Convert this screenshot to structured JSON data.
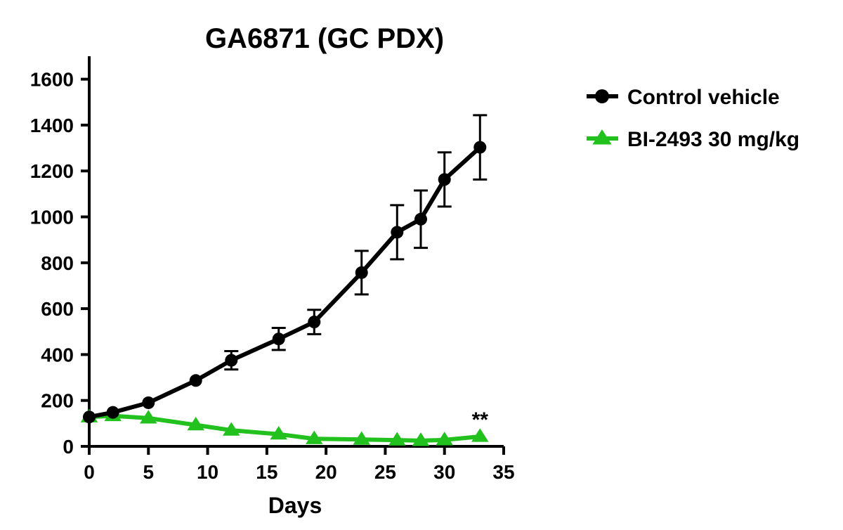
{
  "chart_data": {
    "type": "line",
    "title": "GA6871 (GC PDX)",
    "xlabel": "Days",
    "ylabel": "",
    "xlim": [
      0,
      35
    ],
    "ylim": [
      0,
      1700
    ],
    "xticks": [
      0,
      5,
      10,
      15,
      20,
      25,
      30,
      35
    ],
    "yticks": [
      0,
      200,
      400,
      600,
      800,
      1000,
      1200,
      1400,
      1600
    ],
    "grid": false,
    "legend_position": "top-right",
    "series": [
      {
        "name": "Control vehicle",
        "color": "#000000",
        "marker": "circle",
        "x": [
          0,
          2,
          5,
          9,
          12,
          16,
          19,
          23,
          26,
          28,
          30,
          33
        ],
        "y": [
          128,
          148,
          190,
          287,
          375,
          468,
          542,
          757,
          933,
          990,
          1163,
          1303
        ],
        "error": [
          0,
          0,
          0,
          0,
          40,
          48,
          53,
          95,
          118,
          125,
          118,
          140
        ]
      },
      {
        "name": "BI-2493 30 mg/kg",
        "color": "#22c11e",
        "marker": "triangle",
        "x": [
          0,
          2,
          5,
          9,
          12,
          16,
          19,
          23,
          26,
          28,
          30,
          33
        ],
        "y": [
          128,
          133,
          123,
          93,
          70,
          53,
          33,
          30,
          27,
          25,
          28,
          43
        ],
        "error": [
          0,
          0,
          0,
          0,
          0,
          0,
          0,
          0,
          0,
          0,
          0,
          0
        ]
      }
    ],
    "annotations": [
      {
        "text": "**",
        "x": 33,
        "y": 43
      }
    ]
  }
}
